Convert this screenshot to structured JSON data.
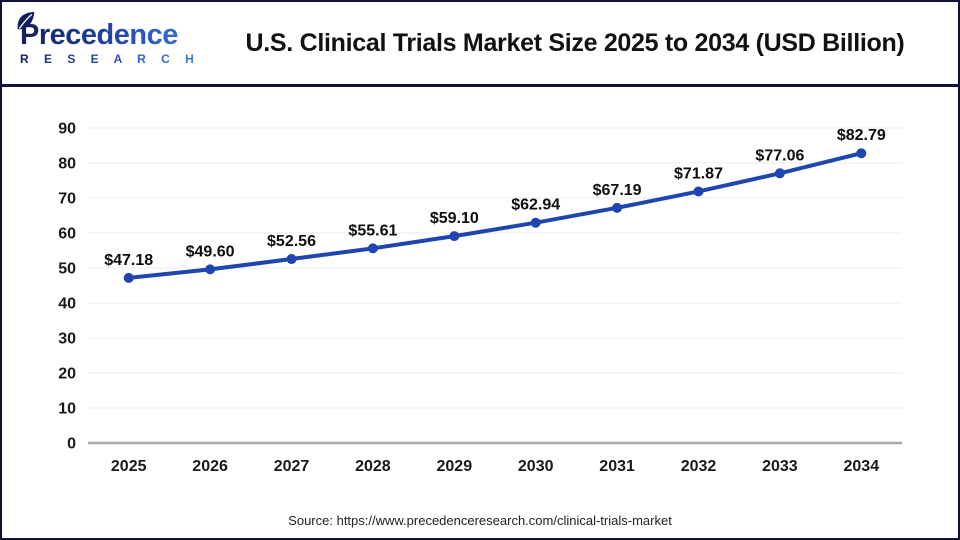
{
  "header": {
    "logo": {
      "name": "Precedence",
      "subname": "R E S E A R C H",
      "navy": "#141d5c",
      "blue": "#3c7bd6"
    },
    "title": "U.S. Clinical Trials Market Size 2025 to 2034 (USD Billion)"
  },
  "chart_data": {
    "type": "line",
    "title": "U.S. Clinical Trials Market Size 2025 to 2034 (USD Billion)",
    "categories": [
      "2025",
      "2026",
      "2027",
      "2028",
      "2029",
      "2030",
      "2031",
      "2032",
      "2033",
      "2034"
    ],
    "values": [
      47.18,
      49.6,
      52.56,
      55.61,
      59.1,
      62.94,
      67.19,
      71.87,
      77.06,
      82.79
    ],
    "value_prefix": "$",
    "xlabel": "",
    "ylabel": "",
    "ylim": [
      0,
      90
    ],
    "yticks": [
      0,
      10,
      20,
      30,
      40,
      50,
      60,
      70,
      80,
      90
    ],
    "grid": true,
    "legend": "none",
    "line_color": "#1f45ae",
    "marker_color": "#1f45ae",
    "grid_color": "#ebebeb",
    "axis_color": "#a8a8a8",
    "label_color": "#191919"
  },
  "footer": {
    "source": "Source: https://www.precedenceresearch.com/clinical-trials-market"
  }
}
